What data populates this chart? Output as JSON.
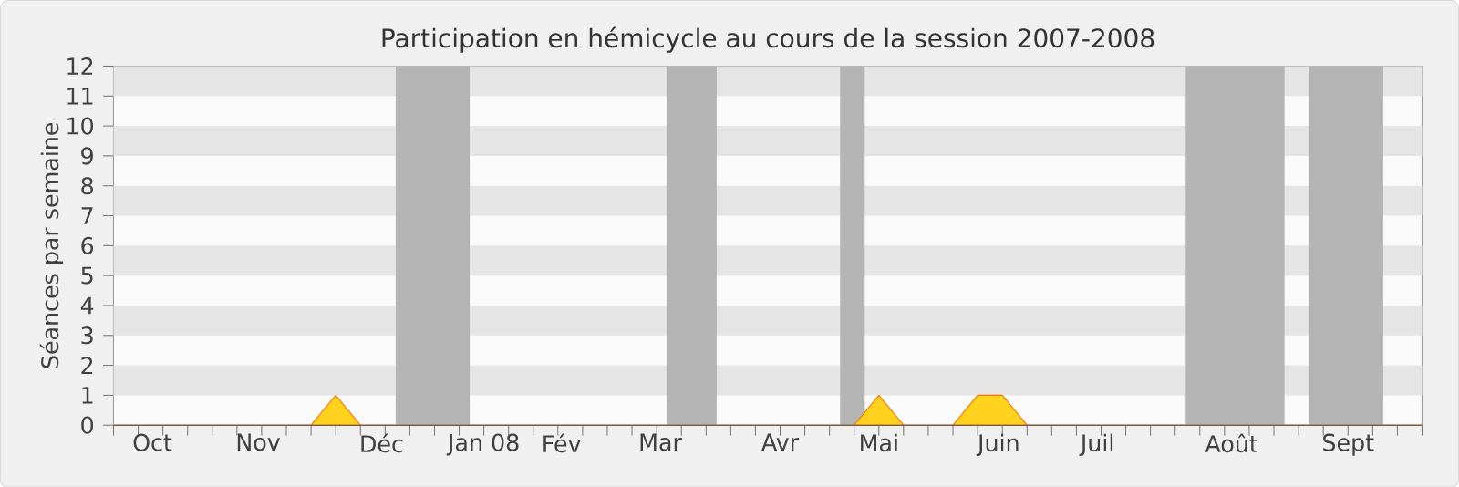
{
  "chart_data": {
    "type": "area",
    "title": "Participation en hémicycle au cours de la session 2007-2008",
    "ylabel": "Séances par semaine",
    "x": [
      "2007-10-01",
      "2007-10-08",
      "2007-10-15",
      "2007-10-22",
      "2007-10-29",
      "2007-11-05",
      "2007-11-12",
      "2007-11-19",
      "2007-11-26",
      "2007-12-03",
      "2007-12-10",
      "2007-12-17",
      "2007-12-24",
      "2007-12-31",
      "2008-01-07",
      "2008-01-14",
      "2008-01-21",
      "2008-01-28",
      "2008-02-04",
      "2008-02-11",
      "2008-02-18",
      "2008-02-25",
      "2008-03-03",
      "2008-03-10",
      "2008-03-17",
      "2008-03-24",
      "2008-03-31",
      "2008-04-07",
      "2008-04-14",
      "2008-04-21",
      "2008-04-28",
      "2008-05-05",
      "2008-05-12",
      "2008-05-19",
      "2008-05-26",
      "2008-06-02",
      "2008-06-09",
      "2008-06-16",
      "2008-06-23",
      "2008-06-30",
      "2008-07-07",
      "2008-07-14",
      "2008-07-21",
      "2008-07-28",
      "2008-08-04",
      "2008-08-11",
      "2008-08-18",
      "2008-08-25",
      "2008-09-01",
      "2008-09-08",
      "2008-09-15",
      "2008-09-22",
      "2008-09-29",
      "2008-10-06"
    ],
    "series": [
      {
        "color": "#ffd21e",
        "values": [
          0,
          0,
          0,
          0,
          0,
          0,
          0,
          0,
          0,
          1,
          0,
          0,
          0,
          0,
          0,
          0,
          0,
          0,
          0,
          0,
          0,
          0,
          0,
          0,
          0,
          0,
          0,
          0,
          0,
          0,
          0,
          1,
          0,
          0,
          0,
          1,
          1,
          0,
          0,
          0,
          0,
          0,
          0,
          0,
          0,
          0,
          0,
          0,
          0,
          0,
          0,
          0,
          0,
          0
        ]
      }
    ],
    "xlim": [
      "2007-10-01",
      "2008-10-06"
    ],
    "ylim": [
      0,
      12
    ],
    "yticks": [
      0,
      1,
      2,
      3,
      4,
      5,
      6,
      7,
      8,
      9,
      10,
      11,
      12
    ],
    "xticks": [
      {
        "value": "2007-10-12",
        "label": "Oct"
      },
      {
        "value": "2007-11-11",
        "label": "Nov"
      },
      {
        "value": "2007-12-16",
        "label": "Déc"
      },
      {
        "value": "2008-01-14",
        "label": "Jan 08"
      },
      {
        "value": "2008-02-05",
        "label": "Fév"
      },
      {
        "value": "2008-03-04",
        "label": "Mar"
      },
      {
        "value": "2008-04-07",
        "label": "Avr"
      },
      {
        "value": "2008-05-05",
        "label": "Mai"
      },
      {
        "value": "2008-06-08",
        "label": "Juin"
      },
      {
        "value": "2008-07-06",
        "label": "Juil"
      },
      {
        "value": "2008-08-13",
        "label": "Août"
      },
      {
        "value": "2008-09-15",
        "label": "Sept"
      },
      {
        "value": "2007-10-01",
        "label": null
      },
      {
        "value": "2007-10-08",
        "label": null
      },
      {
        "value": "2007-10-15",
        "label": null
      },
      {
        "value": "2007-10-22",
        "label": null
      },
      {
        "value": "2007-10-29",
        "label": null
      },
      {
        "value": "2007-11-05",
        "label": null
      },
      {
        "value": "2007-11-12",
        "label": null
      },
      {
        "value": "2007-11-19",
        "label": null
      },
      {
        "value": "2007-11-26",
        "label": null
      },
      {
        "value": "2007-12-03",
        "label": null
      },
      {
        "value": "2007-12-10",
        "label": null
      },
      {
        "value": "2007-12-17",
        "label": null
      },
      {
        "value": "2007-12-24",
        "label": null
      },
      {
        "value": "2007-12-31",
        "label": null
      },
      {
        "value": "2008-01-07",
        "label": null
      },
      {
        "value": "2008-01-14",
        "label": null
      },
      {
        "value": "2008-01-21",
        "label": null
      },
      {
        "value": "2008-01-28",
        "label": null
      },
      {
        "value": "2008-02-04",
        "label": null
      },
      {
        "value": "2008-02-11",
        "label": null
      },
      {
        "value": "2008-02-18",
        "label": null
      },
      {
        "value": "2008-02-25",
        "label": null
      },
      {
        "value": "2008-03-03",
        "label": null
      },
      {
        "value": "2008-03-10",
        "label": null
      },
      {
        "value": "2008-03-17",
        "label": null
      },
      {
        "value": "2008-03-24",
        "label": null
      },
      {
        "value": "2008-03-31",
        "label": null
      },
      {
        "value": "2008-04-07",
        "label": null
      },
      {
        "value": "2008-04-14",
        "label": null
      },
      {
        "value": "2008-04-21",
        "label": null
      },
      {
        "value": "2008-04-28",
        "label": null
      },
      {
        "value": "2008-05-05",
        "label": null
      },
      {
        "value": "2008-05-12",
        "label": null
      },
      {
        "value": "2008-05-19",
        "label": null
      },
      {
        "value": "2008-05-26",
        "label": null
      },
      {
        "value": "2008-06-02",
        "label": null
      },
      {
        "value": "2008-06-09",
        "label": null
      },
      {
        "value": "2008-06-16",
        "label": null
      },
      {
        "value": "2008-06-23",
        "label": null
      },
      {
        "value": "2008-06-30",
        "label": null
      },
      {
        "value": "2008-07-07",
        "label": null
      },
      {
        "value": "2008-07-14",
        "label": null
      },
      {
        "value": "2008-07-21",
        "label": null
      },
      {
        "value": "2008-07-28",
        "label": null
      },
      {
        "value": "2008-08-04",
        "label": null
      },
      {
        "value": "2008-08-11",
        "label": null
      },
      {
        "value": "2008-08-18",
        "label": null
      },
      {
        "value": "2008-08-25",
        "label": null
      },
      {
        "value": "2008-09-01",
        "label": null
      },
      {
        "value": "2008-09-08",
        "label": null
      },
      {
        "value": "2008-09-15",
        "label": null
      },
      {
        "value": "2008-09-22",
        "label": null
      },
      {
        "value": "2008-09-29",
        "label": null
      },
      {
        "value": "2008-10-06",
        "label": null
      }
    ],
    "bands": [
      {
        "axis": "x",
        "from": "2007-12-20",
        "to": "2008-01-10",
        "color": "#b4b4b4"
      },
      {
        "axis": "x",
        "from": "2008-03-06",
        "to": "2008-03-20",
        "color": "#b4b4b4"
      },
      {
        "axis": "x",
        "from": "2008-04-24",
        "to": "2008-05-01",
        "color": "#b4b4b4"
      },
      {
        "axis": "x",
        "from": "2008-07-31",
        "to": "2008-08-28",
        "color": "#b4b4b4"
      },
      {
        "axis": "x",
        "from": "2008-09-04",
        "to": "2008-09-25",
        "color": "#b4b4b4"
      }
    ]
  }
}
